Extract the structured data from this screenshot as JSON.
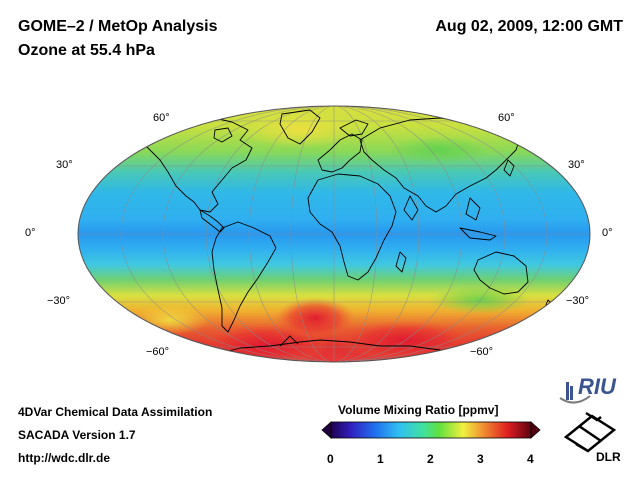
{
  "header": {
    "title": "GOME–2 / MetOp Analysis",
    "subtitle": "Ozone at 55.4 hPa",
    "datetime": "Aug 02, 2009, 12:00 GMT"
  },
  "map": {
    "projection": "mollweide",
    "lat_labels": [
      "60°",
      "30°",
      "0°",
      "−30°",
      "−60°"
    ]
  },
  "footer": {
    "line1": "4DVar Chemical Data Assimilation",
    "line2": "SACADA Version 1.7",
    "url": "http://wdc.dlr.de"
  },
  "colorbar": {
    "title": "Volume Mixing Ratio [ppmv]",
    "ticks": [
      "0",
      "1",
      "2",
      "3",
      "4"
    ]
  },
  "logos": {
    "riu": "RIU",
    "dlr": "DLR"
  },
  "colors": {
    "high": "#e0202a",
    "mid": "#f0e040",
    "low": "#40c8f0"
  }
}
